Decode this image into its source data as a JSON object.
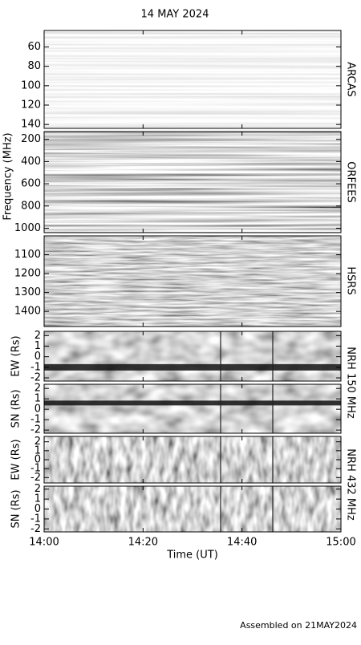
{
  "chart_data": {
    "type": "spectrogram",
    "title": "14 MAY 2024",
    "ylabel": "Frequency (MHz)",
    "xlabel": "Time (UT)",
    "xlim": [
      0,
      60
    ],
    "xticks": [
      {
        "value": 0,
        "label": "14:00"
      },
      {
        "value": 20,
        "label": "14:20"
      },
      {
        "value": 40,
        "label": "14:40"
      },
      {
        "value": 60,
        "label": "15:00"
      }
    ],
    "side_labels": [
      "ARCAS",
      "ORFEES",
      "HSRS",
      "NRH 150 MHz",
      "NRH 432 MHz"
    ],
    "panels": [
      {
        "ylim": [
          144,
          43
        ],
        "yticks": [
          60,
          80,
          100,
          120,
          140
        ]
      },
      {
        "ylim": [
          1040,
          130
        ],
        "yticks": [
          200,
          400,
          600,
          800,
          1000
        ]
      },
      {
        "ylim": [
          1480,
          1000
        ],
        "yticks": [
          1100,
          1200,
          1300,
          1400
        ]
      },
      {
        "ylabel": "EW (Rs)",
        "ylim": [
          -2.3,
          2.4
        ],
        "yticks": [
          -2,
          -1,
          0,
          1,
          2
        ]
      },
      {
        "ylabel": "SN (Rs)",
        "ylim": [
          -2.3,
          2.4
        ],
        "yticks": [
          -2,
          -1,
          0,
          1,
          2
        ]
      },
      {
        "ylabel": "EW (Rs)",
        "ylim": [
          -2.6,
          2.6
        ],
        "yticks": [
          -2,
          -1,
          0,
          1,
          2
        ]
      },
      {
        "ylabel": "SN (Rs)",
        "ylim": [
          -2.3,
          2.3
        ],
        "yticks": [
          -2,
          -1,
          0,
          1,
          2
        ]
      }
    ],
    "footer": "Assembled on 21MAY2024"
  }
}
